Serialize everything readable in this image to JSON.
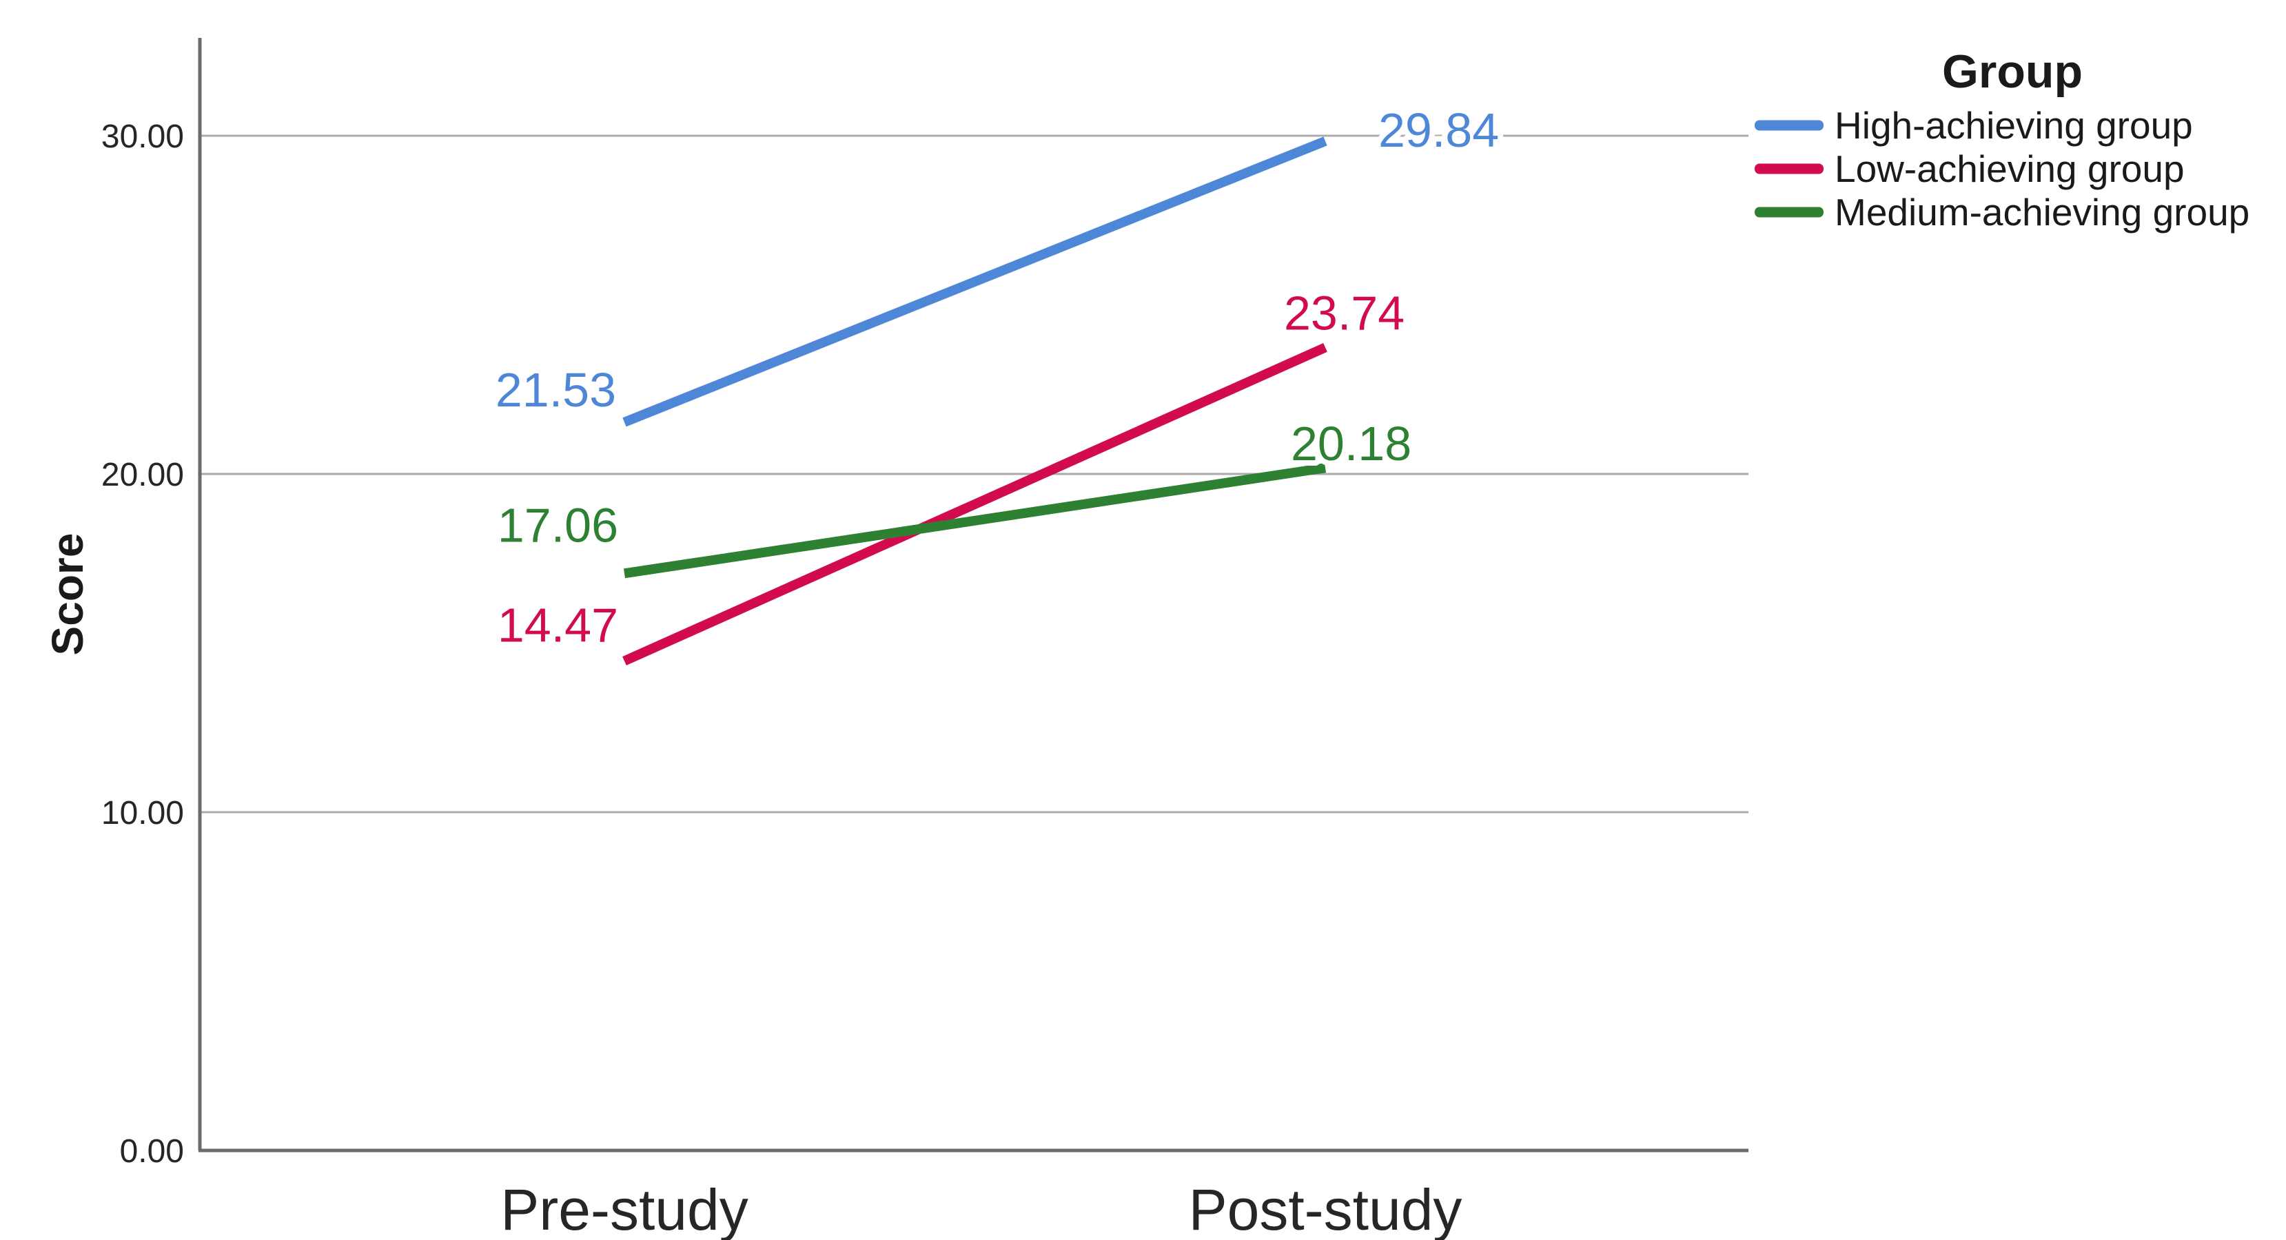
{
  "chart_data": {
    "type": "line",
    "categories": [
      "Pre-study",
      "Post-study"
    ],
    "series": [
      {
        "name": "High-achieving group",
        "values": [
          21.53,
          29.84
        ],
        "point_labels": [
          "21.53",
          "29.84"
        ],
        "color": "#4E86D8"
      },
      {
        "name": "Low-achieving group",
        "values": [
          14.47,
          23.74
        ],
        "point_labels": [
          "14.47",
          "23.74"
        ],
        "color": "#D20B4E"
      },
      {
        "name": "Medium-achieving group",
        "values": [
          17.06,
          20.18
        ],
        "point_labels": [
          "17.06",
          "20.18"
        ],
        "color": "#2E8032"
      }
    ],
    "ylabel": "Score",
    "xlabel": "",
    "ylim": [
      0,
      33
    ],
    "yticks": [
      {
        "value": 0,
        "label": "0.00"
      },
      {
        "value": 10,
        "label": "10.00"
      },
      {
        "value": 20,
        "label": "20.00"
      },
      {
        "value": 30,
        "label": "30.00"
      }
    ],
    "grid": "horizontal",
    "legend_title": "Group",
    "legend_position": "top-right",
    "colors": {
      "background": "#FFFFFF",
      "axis": "#6B6B6B",
      "gridline": "#ACACAC",
      "tick_text": "#262626",
      "label_text": "#1A1A1A"
    }
  }
}
